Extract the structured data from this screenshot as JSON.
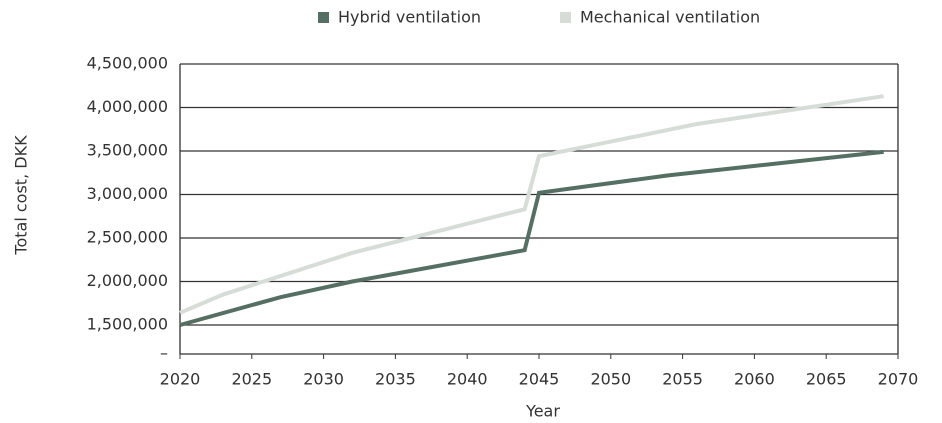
{
  "chart_data": {
    "type": "line",
    "x_label": "Year",
    "y_label": "Total cost, DKK",
    "xlim": [
      2020,
      2070
    ],
    "xticks": [
      2020,
      2025,
      2030,
      2035,
      2040,
      2045,
      2050,
      2055,
      2060,
      2065,
      2070
    ],
    "ylim": [
      1166667,
      4500000
    ],
    "yticks": [
      {
        "value": 1166667,
        "label": "–"
      },
      {
        "value": 1500000,
        "label": "1,500,000"
      },
      {
        "value": 2000000,
        "label": "2,000,000"
      },
      {
        "value": 2500000,
        "label": "2,500,000"
      },
      {
        "value": 3000000,
        "label": "3,000,000"
      },
      {
        "value": 3500000,
        "label": "3,500,000"
      },
      {
        "value": 4000000,
        "label": "4,000,000"
      },
      {
        "value": 4500000,
        "label": "4,500,000"
      }
    ],
    "grid": true,
    "legend": "top",
    "series": [
      {
        "name": "Hybrid ventilation",
        "color": "#566f63",
        "x": [
          2020,
          2027,
          2032,
          2044,
          2045,
          2054,
          2069
        ],
        "values": [
          1500000,
          1820000,
          2000000,
          2360000,
          3020000,
          3220000,
          3490000
        ]
      },
      {
        "name": "Mechanical ventilation",
        "color": "#d6ddd7",
        "x": [
          2020,
          2023,
          2032,
          2044,
          2045,
          2056,
          2069
        ],
        "values": [
          1640000,
          1850000,
          2330000,
          2830000,
          3440000,
          3810000,
          4130000
        ]
      }
    ]
  }
}
